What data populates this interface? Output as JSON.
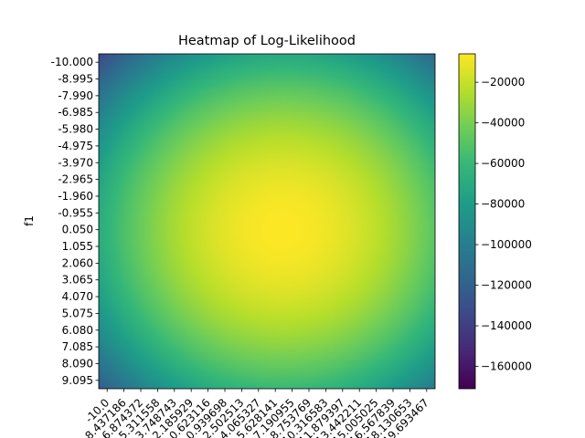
{
  "chart_data": {
    "type": "heatmap",
    "title": "Heatmap of Log-Likelihood",
    "ylabel": "f1",
    "xlabel": "",
    "y_tick_labels": [
      "-10.000",
      "-8.995",
      "-7.990",
      "-6.985",
      "-5.980",
      "-4.975",
      "-3.970",
      "-2.965",
      "-1.960",
      "-0.955",
      "0.050",
      "1.055",
      "2.060",
      "3.065",
      "4.070",
      "5.075",
      "6.080",
      "7.085",
      "8.090",
      "9.095"
    ],
    "x_tick_labels": [
      "-10.0",
      "-8.437186",
      "-6.874372",
      "-5.311558",
      "-3.748743",
      "-2.185929",
      "-0.623116",
      "0.939698",
      "2.502513",
      "4.065327",
      "5.628141",
      "7.190955",
      "8.753769",
      "10.316583",
      "11.879397",
      "13.442211",
      "15.005025",
      "16.567839",
      "18.130653",
      "19.693467"
    ],
    "colorbar": {
      "ticks": [
        -20000,
        -40000,
        -60000,
        -80000,
        -100000,
        -120000,
        -140000,
        -160000
      ],
      "tick_labels": [
        "−20000",
        "−40000",
        "−60000",
        "−80000",
        "−100000",
        "−120000",
        "−140000",
        "−160000"
      ],
      "vmin": -171000,
      "vmax": -6000,
      "colormap": "viridis"
    },
    "surface": {
      "peak_x": 7.0,
      "peak_y": 0.5,
      "peak_value": -6000,
      "x_range": [
        -10.0,
        21.0
      ],
      "y_range": [
        -10.0,
        10.0
      ],
      "x_curvature": 220,
      "y_curvature": 600
    },
    "grid": false
  }
}
